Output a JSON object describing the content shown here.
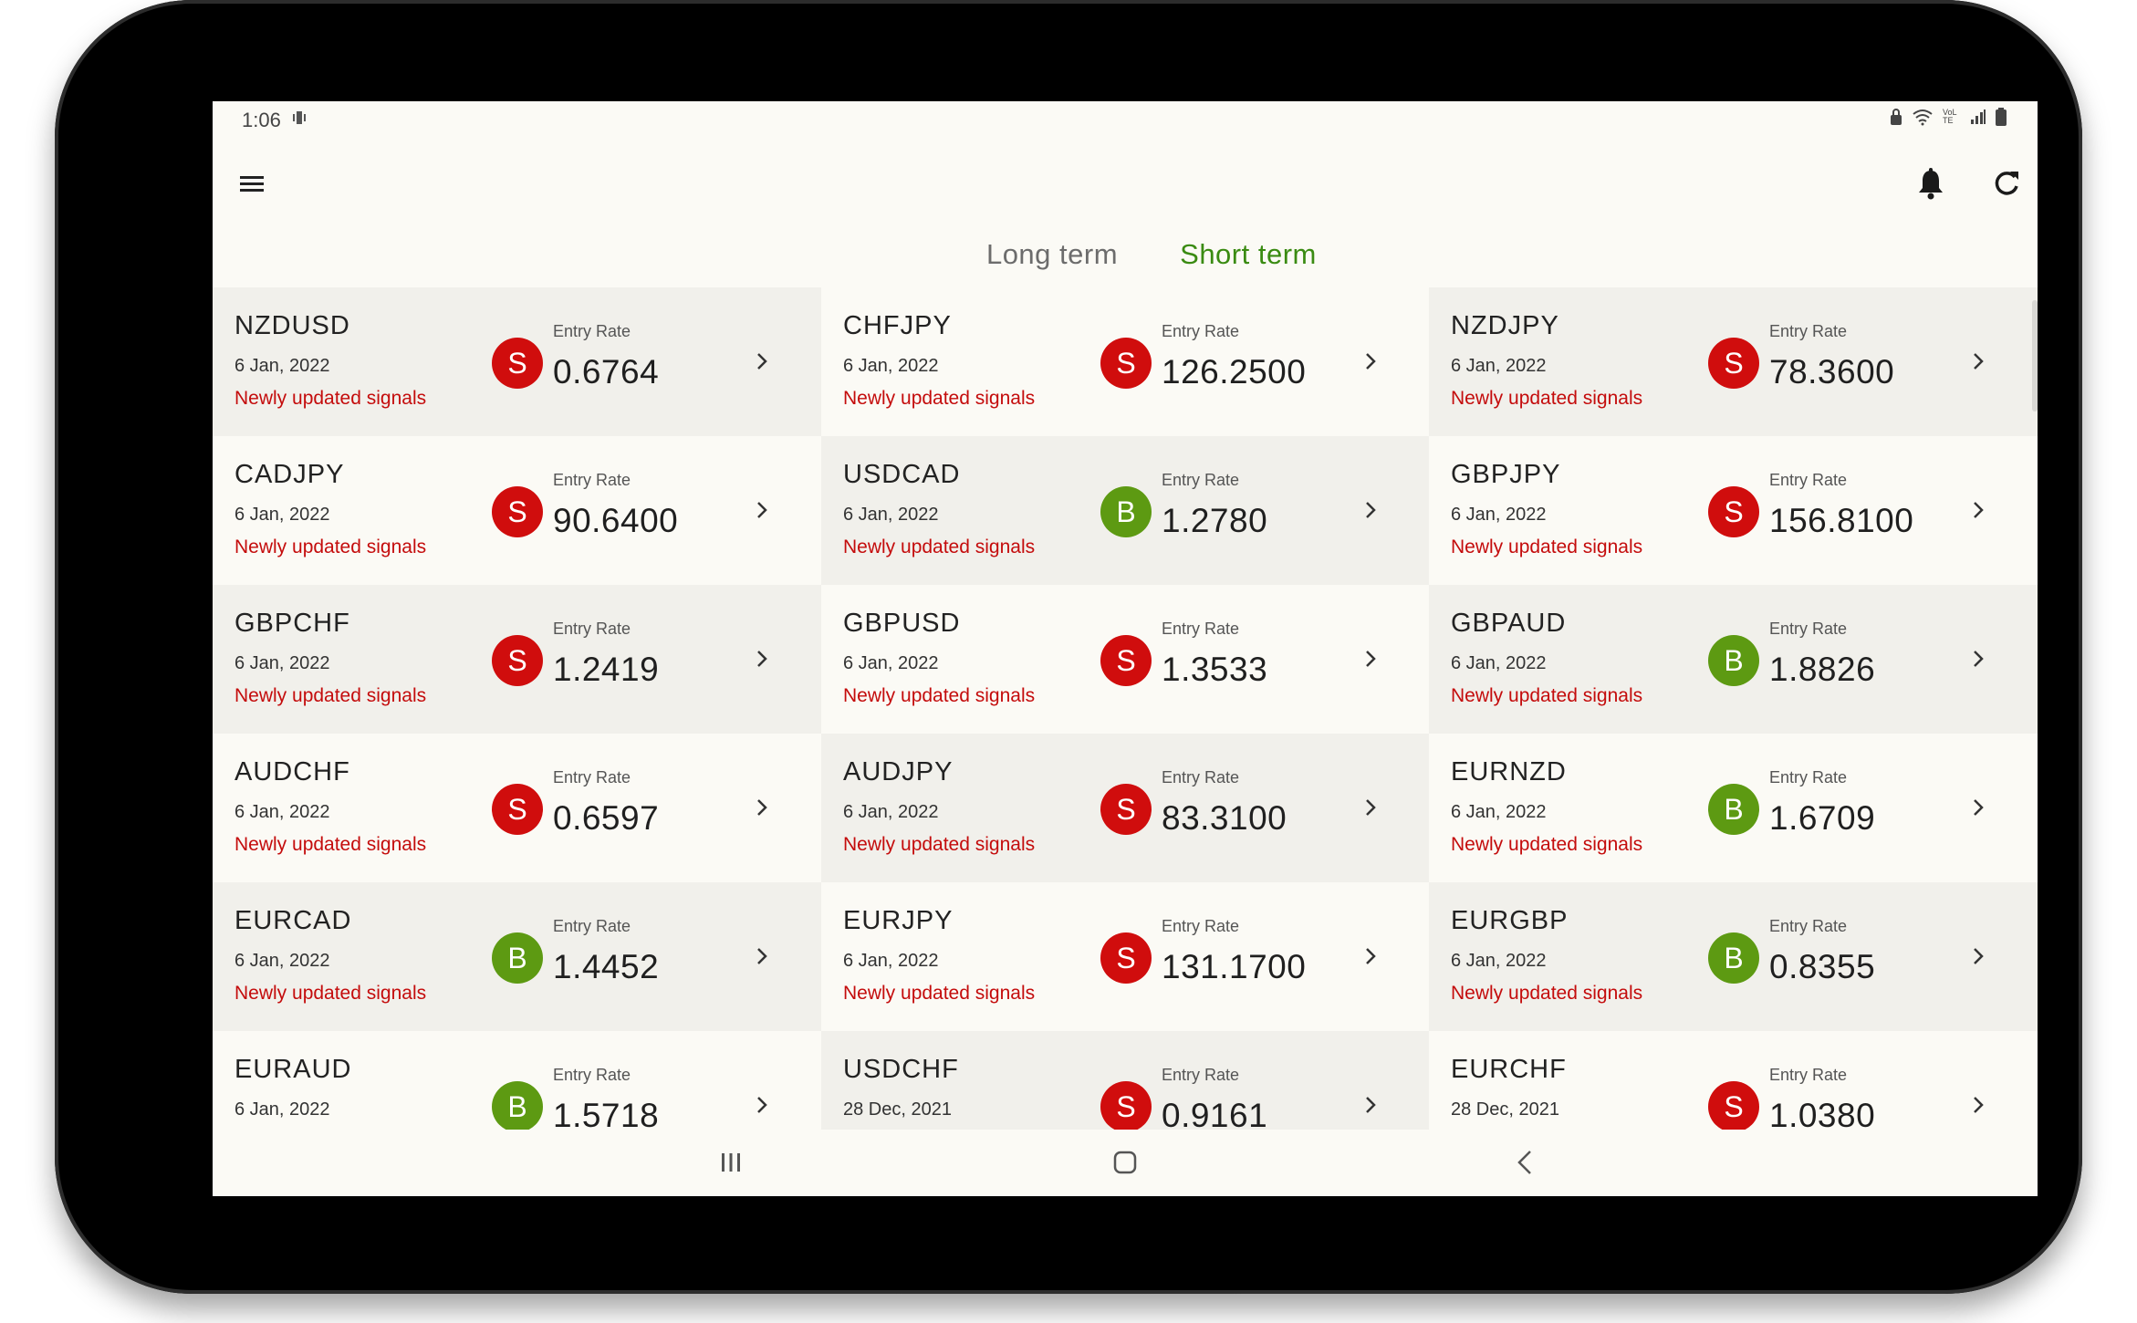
{
  "status": {
    "time": "1:06",
    "sub_icon": "vibrate-icon",
    "right_icons": [
      "lock-icon",
      "wifi-icon",
      "lte-icon",
      "signal-icon",
      "battery-icon"
    ],
    "lte_label": "VoLTE"
  },
  "appbar": {
    "menu_icon": "menu-icon",
    "bell_icon": "bell-icon",
    "refresh_icon": "refresh-icon"
  },
  "tabs": [
    {
      "label": "Long term",
      "active": false
    },
    {
      "label": "Short term",
      "active": true
    }
  ],
  "colors": {
    "accent_green": "#3a8b12",
    "sell_red": "#d00d0d",
    "buy_green": "#5d9a12",
    "note_red": "#c40c0c"
  },
  "signals": [
    {
      "pair": "NZDUSD",
      "date": "6 Jan, 2022",
      "note": "Newly updated signals",
      "signal": "S",
      "rate_label": "Entry Rate",
      "rate": "0.6764"
    },
    {
      "pair": "CHFJPY",
      "date": "6 Jan, 2022",
      "note": "Newly updated signals",
      "signal": "S",
      "rate_label": "Entry Rate",
      "rate": "126.2500"
    },
    {
      "pair": "NZDJPY",
      "date": "6 Jan, 2022",
      "note": "Newly updated signals",
      "signal": "S",
      "rate_label": "Entry Rate",
      "rate": "78.3600"
    },
    {
      "pair": "CADJPY",
      "date": "6 Jan, 2022",
      "note": "Newly updated signals",
      "signal": "S",
      "rate_label": "Entry Rate",
      "rate": "90.6400"
    },
    {
      "pair": "USDCAD",
      "date": "6 Jan, 2022",
      "note": "Newly updated signals",
      "signal": "B",
      "rate_label": "Entry Rate",
      "rate": "1.2780"
    },
    {
      "pair": "GBPJPY",
      "date": "6 Jan, 2022",
      "note": "Newly updated signals",
      "signal": "S",
      "rate_label": "Entry Rate",
      "rate": "156.8100"
    },
    {
      "pair": "GBPCHF",
      "date": "6 Jan, 2022",
      "note": "Newly updated signals",
      "signal": "S",
      "rate_label": "Entry Rate",
      "rate": "1.2419"
    },
    {
      "pair": "GBPUSD",
      "date": "6 Jan, 2022",
      "note": "Newly updated signals",
      "signal": "S",
      "rate_label": "Entry Rate",
      "rate": "1.3533"
    },
    {
      "pair": "GBPAUD",
      "date": "6 Jan, 2022",
      "note": "Newly updated signals",
      "signal": "B",
      "rate_label": "Entry Rate",
      "rate": "1.8826"
    },
    {
      "pair": "AUDCHF",
      "date": "6 Jan, 2022",
      "note": "Newly updated signals",
      "signal": "S",
      "rate_label": "Entry Rate",
      "rate": "0.6597"
    },
    {
      "pair": "AUDJPY",
      "date": "6 Jan, 2022",
      "note": "Newly updated signals",
      "signal": "S",
      "rate_label": "Entry Rate",
      "rate": "83.3100"
    },
    {
      "pair": "EURNZD",
      "date": "6 Jan, 2022",
      "note": "Newly updated signals",
      "signal": "B",
      "rate_label": "Entry Rate",
      "rate": "1.6709"
    },
    {
      "pair": "EURCAD",
      "date": "6 Jan, 2022",
      "note": "Newly updated signals",
      "signal": "B",
      "rate_label": "Entry Rate",
      "rate": "1.4452"
    },
    {
      "pair": "EURJPY",
      "date": "6 Jan, 2022",
      "note": "Newly updated signals",
      "signal": "S",
      "rate_label": "Entry Rate",
      "rate": "131.1700"
    },
    {
      "pair": "EURGBP",
      "date": "6 Jan, 2022",
      "note": "Newly updated signals",
      "signal": "B",
      "rate_label": "Entry Rate",
      "rate": "0.8355"
    },
    {
      "pair": "EURAUD",
      "date": "6 Jan, 2022",
      "note": "",
      "signal": "B",
      "rate_label": "Entry Rate",
      "rate": "1.5718"
    },
    {
      "pair": "USDCHF",
      "date": "28 Dec, 2021",
      "note": "",
      "signal": "S",
      "rate_label": "Entry Rate",
      "rate": "0.9161"
    },
    {
      "pair": "EURCHF",
      "date": "28 Dec, 2021",
      "note": "",
      "signal": "S",
      "rate_label": "Entry Rate",
      "rate": "1.0380"
    }
  ],
  "navbar": {
    "recents_icon": "recents-icon",
    "home_icon": "home-icon",
    "back_icon": "back-icon"
  }
}
